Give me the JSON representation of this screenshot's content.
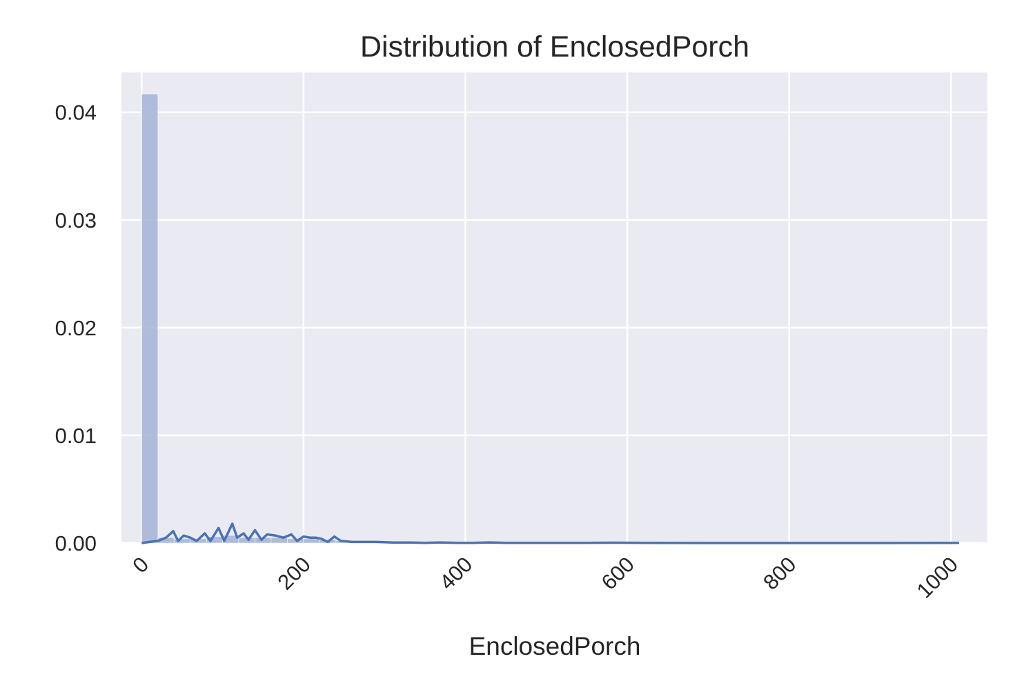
{
  "chart_data": {
    "type": "histogram",
    "title": "Distribution of EnclosedPorch",
    "xlabel": "EnclosedPorch",
    "ylabel": "",
    "xlim": [
      -25,
      1045
    ],
    "ylim": [
      0,
      0.0437
    ],
    "xticks": [
      0,
      200,
      400,
      600,
      800,
      1000
    ],
    "xtick_labels": [
      "0",
      "200",
      "400",
      "600",
      "800",
      "1000"
    ],
    "yticks": [
      0,
      0.01,
      0.02,
      0.03,
      0.04
    ],
    "ytick_labels": [
      "0.00",
      "0.01",
      "0.02",
      "0.03",
      "0.04"
    ],
    "grid": true,
    "colors": {
      "background": "#eaeaf2",
      "grid": "#ffffff",
      "hist_fill": "#a7b6d8",
      "kde_line": "#4c72b0"
    },
    "histogram": {
      "bin_width": 20,
      "bins": [
        {
          "x0": 0,
          "x1": 20,
          "density": 0.0417
        },
        {
          "x0": 20,
          "x1": 40,
          "density": 0.0005
        },
        {
          "x0": 40,
          "x1": 60,
          "density": 0.0004
        },
        {
          "x0": 60,
          "x1": 80,
          "density": 0.0004
        },
        {
          "x0": 80,
          "x1": 100,
          "density": 0.0006
        },
        {
          "x0": 100,
          "x1": 120,
          "density": 0.0007
        },
        {
          "x0": 120,
          "x1": 140,
          "density": 0.0005
        },
        {
          "x0": 140,
          "x1": 160,
          "density": 0.0005
        },
        {
          "x0": 160,
          "x1": 180,
          "density": 0.0005
        },
        {
          "x0": 180,
          "x1": 200,
          "density": 0.0004
        },
        {
          "x0": 200,
          "x1": 220,
          "density": 0.0004
        },
        {
          "x0": 220,
          "x1": 240,
          "density": 0.0003
        },
        {
          "x0": 240,
          "x1": 260,
          "density": 0.0002
        },
        {
          "x0": 260,
          "x1": 280,
          "density": 0.0001
        },
        {
          "x0": 280,
          "x1": 300,
          "density": 0.0001
        }
      ]
    },
    "kde": {
      "x": [
        0,
        10,
        20,
        30,
        39,
        45,
        52,
        60,
        68,
        78,
        85,
        95,
        102,
        112,
        118,
        126,
        132,
        140,
        148,
        155,
        165,
        175,
        185,
        192,
        200,
        208,
        215,
        222,
        230,
        238,
        246,
        260,
        275,
        290,
        310,
        330,
        350,
        370,
        390,
        410,
        430,
        450,
        500,
        550,
        580,
        620,
        700,
        800,
        900,
        1010
      ],
      "y": [
        0,
        0.0001,
        0.0002,
        0.0005,
        0.0011,
        0.0002,
        0.0007,
        0.0005,
        0.0002,
        0.0009,
        0.0002,
        0.0014,
        0.0002,
        0.0018,
        0.0005,
        0.0009,
        0.0003,
        0.0012,
        0.0003,
        0.0008,
        0.0007,
        0.0005,
        0.0008,
        0.0002,
        0.0006,
        0.0005,
        0.0005,
        0.0004,
        0.0001,
        0.0006,
        0.0002,
        0.0001,
        0.0001,
        0.0001,
        5e-05,
        5e-05,
        2e-05,
        5e-05,
        1e-05,
        2e-05,
        6e-05,
        1e-05,
        1e-05,
        2e-05,
        3e-05,
        1e-05,
        0.0,
        0.0,
        0.0,
        1e-05
      ]
    }
  }
}
